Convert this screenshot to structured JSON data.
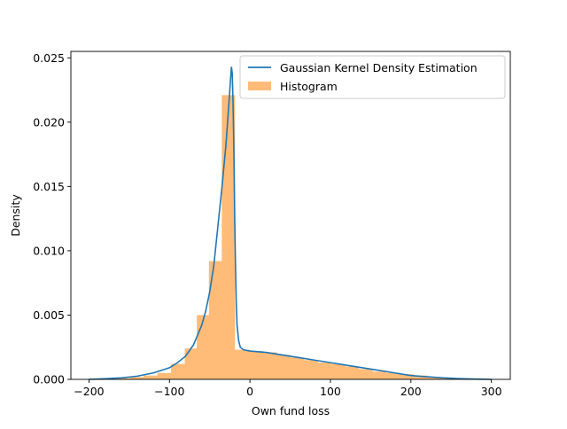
{
  "chart_data": {
    "type": "line",
    "xlabel": "Own fund loss",
    "ylabel": "Density",
    "xlim": [
      -222.5,
      323.5
    ],
    "ylim": [
      0,
      0.0255
    ],
    "xticks": [
      -200,
      -100,
      0,
      100,
      200,
      300
    ],
    "xtick_labels": [
      "−200",
      "−100",
      "0",
      "100",
      "200",
      "300"
    ],
    "yticks": [
      0,
      0.005,
      0.01,
      0.015,
      0.02,
      0.025
    ],
    "ytick_labels": [
      "0.000",
      "0.005",
      "0.010",
      "0.015",
      "0.020",
      "0.025"
    ],
    "grid": false,
    "legend_position": "top-right",
    "series": [
      {
        "name": "Gaussian Kernel Density Estimation",
        "kind": "line",
        "color": "#1f77b4",
        "x": [
          -200,
          -180,
          -160,
          -140,
          -120,
          -100,
          -90,
          -80,
          -70,
          -60,
          -55,
          -50,
          -45,
          -40,
          -35,
          -30,
          -28,
          -26,
          -24,
          -23,
          -22,
          -21,
          -20,
          -19,
          -18,
          -17,
          -16,
          -14,
          -12,
          -8,
          0,
          20,
          40,
          60,
          80,
          100,
          120,
          140,
          160,
          180,
          200,
          220,
          240,
          260,
          280,
          300
        ],
        "y": [
          0,
          5e-05,
          0.00012,
          0.00025,
          0.0005,
          0.0009,
          0.0013,
          0.0018,
          0.0027,
          0.0042,
          0.0053,
          0.0068,
          0.0088,
          0.0118,
          0.0148,
          0.0181,
          0.0198,
          0.0216,
          0.0234,
          0.0243,
          0.0238,
          0.0215,
          0.018,
          0.013,
          0.009,
          0.006,
          0.0042,
          0.003,
          0.0025,
          0.0023,
          0.0022,
          0.0021,
          0.0019,
          0.0017,
          0.0015,
          0.0013,
          0.0011,
          0.0009,
          0.0007,
          0.0005,
          0.0003,
          0.0002,
          0.00012,
          6e-05,
          2e-05,
          0
        ]
      },
      {
        "name": "Histogram",
        "kind": "histogram",
        "color": "#ffbb78",
        "bin_edges": [
          -200,
          -183,
          -166,
          -149,
          -132,
          -115,
          -98,
          -81,
          -66,
          -51,
          -35,
          -19,
          0,
          16,
          33,
          50,
          67,
          84,
          101,
          118,
          135,
          152,
          169,
          186,
          203,
          220,
          237,
          254,
          271,
          288,
          300
        ],
        "values": [
          2e-05,
          5e-05,
          0.0001,
          0.00018,
          0.0003,
          0.0005,
          0.0012,
          0.0024,
          0.005,
          0.0092,
          0.0221,
          0.0023,
          0.0022,
          0.0021,
          0.0019,
          0.0017,
          0.0015,
          0.0013,
          0.0012,
          0.001,
          0.0008,
          0.0006,
          0.0005,
          0.0004,
          0.0003,
          0.0002,
          0.00012,
          8e-05,
          4e-05,
          2e-05
        ]
      }
    ]
  }
}
